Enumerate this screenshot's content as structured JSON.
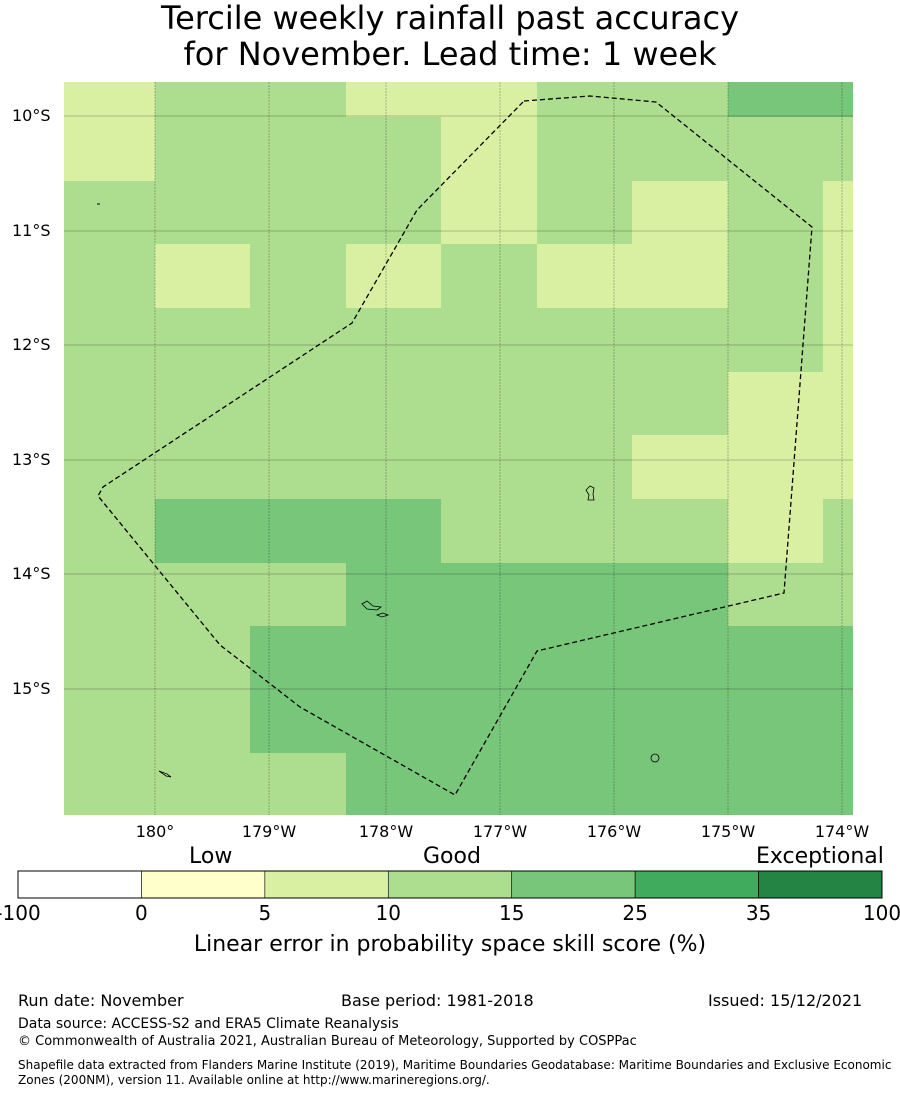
{
  "title_line1": "Tercile weekly rainfall past accuracy",
  "title_line2": "for November. Lead time: 1 week",
  "map": {
    "lat_labels": [
      "10°S",
      "11°S",
      "12°S",
      "13°S",
      "14°S",
      "15°S"
    ],
    "lon_labels": [
      "180°",
      "179°W",
      "178°W",
      "177°W",
      "176°W",
      "175°W",
      "174°W"
    ],
    "category_colors": {
      "Y": "#d9f0a3",
      "G": "#addd8e",
      "M": "#78c679"
    },
    "grid_rows": [
      "YGGYYGGMM",
      "YGGGYGGGG",
      "GGGGYGYGY",
      "GYGYGYYGY",
      "GGGGGGGGY",
      "GGGGGGGYY",
      "GGGGGGYYY",
      "GMMMGGGYG",
      "GGGMMMMGG",
      "GGMMMMMMM",
      "GGMMMMMMM",
      "GGGMMMMMM"
    ]
  },
  "colorbar": {
    "category_labels": [
      "Low",
      "Good",
      "Exceptional"
    ],
    "colors": [
      "#ffffff",
      "#ffffcc",
      "#d9f0a3",
      "#addd8e",
      "#78c679",
      "#41ab5d",
      "#238443"
    ],
    "ticks": [
      "-100",
      "0",
      "5",
      "10",
      "15",
      "25",
      "35",
      "100"
    ],
    "label": "Linear error in probability space skill score (%)"
  },
  "footer": {
    "run_date": "Run date: November",
    "base_period": "Base period: 1981-2018",
    "issued": "Issued: 15/12/2021",
    "data_source": "Data source: ACCESS-S2 and ERA5 Climate Reanalysis",
    "copyright": "© Commonwealth of Australia 2021, Australian Bureau of Meteorology, Supported by COSPPac",
    "shapefile_line1": "Shapefile data extracted from Flanders Marine Institute (2019), Maritime Boundaries Geodatabase: Maritime Boundaries and Exclusive Economic",
    "shapefile_line2": "Zones (200NM), version 11. Available online at http://www.marineregions.org/."
  }
}
